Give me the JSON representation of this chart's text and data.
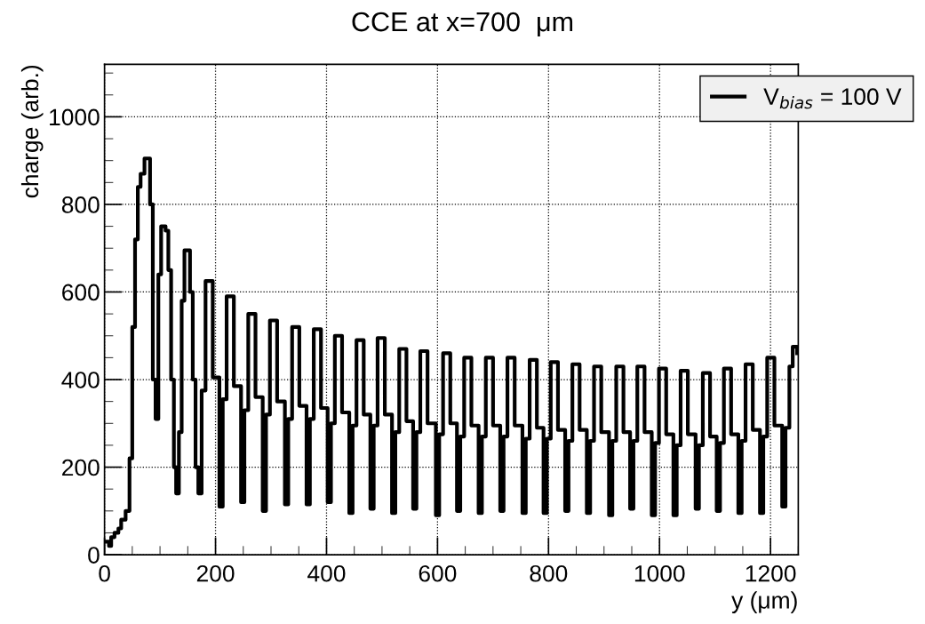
{
  "chart_data": {
    "type": "step",
    "title": "CCE at x=700  μm",
    "xlabel": "y (μm)",
    "ylabel": "charge (arb.)",
    "xlim": [
      0,
      1250
    ],
    "ylim": [
      0,
      1120
    ],
    "xticks": [
      0,
      200,
      400,
      600,
      800,
      1000,
      1200
    ],
    "yticks": [
      0,
      200,
      400,
      600,
      800,
      1000
    ],
    "grid": true,
    "legend": "top right",
    "line_style": "solid",
    "marker": "none",
    "series": [
      {
        "name": "V$_{bias}$ = 100 V",
        "color": "#000000",
        "x": [
          0,
          8,
          12,
          18,
          25,
          30,
          38,
          45,
          50,
          55,
          60,
          65,
          72,
          82,
          87,
          92,
          97,
          102,
          110,
          115,
          120,
          125,
          129,
          134,
          139,
          144,
          154,
          159,
          164,
          169,
          175,
          182,
          195,
          207,
          213,
          220,
          233,
          246,
          252,
          259,
          272,
          285,
          291,
          298,
          311,
          325,
          331,
          338,
          351,
          364,
          370,
          377,
          390,
          402,
          408,
          415,
          428,
          441,
          447,
          454,
          467,
          479,
          485,
          492,
          505,
          518,
          524,
          531,
          544,
          556,
          562,
          569,
          582,
          597,
          603,
          610,
          623,
          635,
          641,
          648,
          661,
          674,
          680,
          687,
          700,
          713,
          719,
          726,
          739,
          753,
          759,
          766,
          779,
          791,
          797,
          804,
          817,
          830,
          836,
          843,
          856,
          869,
          875,
          882,
          895,
          909,
          915,
          922,
          935,
          947,
          953,
          960,
          973,
          986,
          992,
          999,
          1012,
          1025,
          1031,
          1038,
          1051,
          1065,
          1071,
          1078,
          1091,
          1103,
          1109,
          1116,
          1129,
          1142,
          1148,
          1155,
          1168,
          1181,
          1187,
          1194,
          1207,
          1221,
          1227,
          1234,
          1240,
          1248
        ],
        "values": [
          30,
          20,
          40,
          50,
          60,
          80,
          100,
          220,
          520,
          720,
          840,
          870,
          905,
          800,
          400,
          310,
          640,
          750,
          740,
          650,
          400,
          200,
          140,
          280,
          580,
          695,
          600,
          400,
          200,
          140,
          375,
          625,
          405,
          110,
          355,
          590,
          385,
          120,
          330,
          550,
          360,
          100,
          320,
          535,
          350,
          115,
          310,
          520,
          340,
          115,
          310,
          515,
          335,
          120,
          300,
          500,
          325,
          95,
          295,
          490,
          320,
          105,
          295,
          495,
          320,
          95,
          280,
          470,
          305,
          105,
          280,
          465,
          300,
          90,
          275,
          460,
          300,
          100,
          270,
          450,
          295,
          95,
          270,
          450,
          295,
          100,
          270,
          450,
          295,
          95,
          265,
          445,
          290,
          95,
          265,
          440,
          285,
          100,
          260,
          435,
          285,
          95,
          260,
          430,
          280,
          90,
          260,
          430,
          280,
          105,
          260,
          430,
          280,
          90,
          255,
          425,
          275,
          90,
          250,
          420,
          275,
          105,
          250,
          415,
          270,
          100,
          255,
          425,
          275,
          95,
          260,
          435,
          285,
          95,
          270,
          450,
          295,
          110,
          290,
          430,
          475,
          460
        ]
      }
    ]
  }
}
